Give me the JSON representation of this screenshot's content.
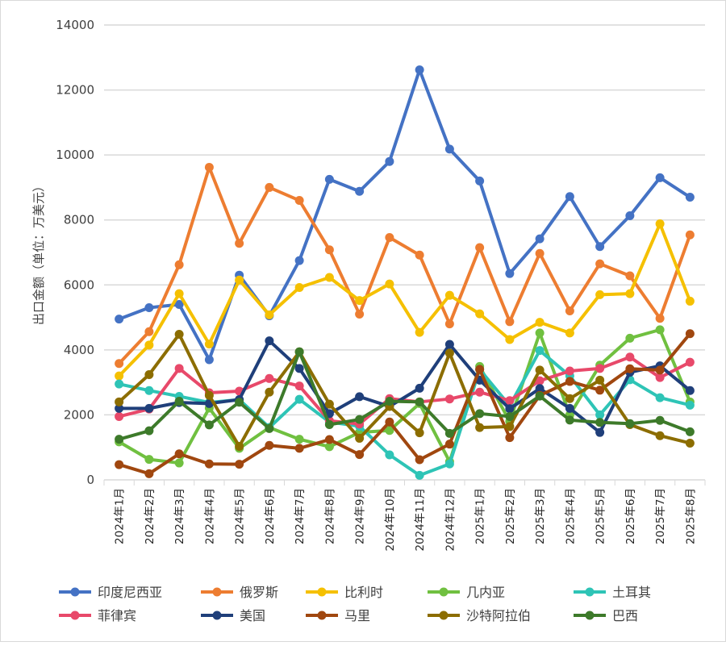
{
  "chart_data": {
    "type": "line",
    "title": "",
    "xlabel": "",
    "ylabel": "出口金额（单位：万美元）",
    "ylim": [
      0,
      14000
    ],
    "yticks": [
      0,
      2000,
      4000,
      6000,
      8000,
      10000,
      12000,
      14000
    ],
    "grid": true,
    "legend_position": "bottom",
    "categories": [
      "2024年1月",
      "2024年2月",
      "2024年3月",
      "2024年4月",
      "2024年5月",
      "2024年6月",
      "2024年7月",
      "2024年8月",
      "2024年9月",
      "2024年10月",
      "2024年11月",
      "2024年12月",
      "2025年1月",
      "2025年2月",
      "2025年3月",
      "2025年4月",
      "2025年5月",
      "2025年6月",
      "2025年7月",
      "2025年8月"
    ],
    "series": [
      {
        "name": "印度尼西亚",
        "color": "#4472c4",
        "values": [
          4950,
          5300,
          5400,
          3700,
          6300,
          5050,
          6750,
          9250,
          8880,
          9800,
          12620,
          10180,
          9200,
          6350,
          7420,
          8720,
          7180,
          8130,
          9300,
          8700
        ]
      },
      {
        "name": "俄罗斯",
        "color": "#ed7d31",
        "values": [
          3580,
          4560,
          6620,
          9620,
          7280,
          9000,
          8600,
          7080,
          5100,
          7460,
          6920,
          4800,
          7150,
          4870,
          6970,
          5200,
          6650,
          6280,
          4970,
          7540
        ]
      },
      {
        "name": "比利时",
        "color": "#f5c000",
        "values": [
          3200,
          4150,
          5730,
          4180,
          6150,
          5080,
          5920,
          6230,
          5520,
          6030,
          4540,
          5680,
          5110,
          4320,
          4850,
          4520,
          5700,
          5730,
          7880,
          5500
        ]
      },
      {
        "name": "几内亚",
        "color": "#70c040",
        "values": [
          1170,
          630,
          520,
          2210,
          970,
          1610,
          1250,
          1020,
          1460,
          1520,
          2350,
          560,
          3490,
          1800,
          4520,
          2000,
          3530,
          4360,
          4620,
          2400
        ]
      },
      {
        "name": "土耳其",
        "color": "#2ec4b6",
        "values": [
          2950,
          2750,
          2570,
          2380,
          2470,
          1610,
          2480,
          1780,
          1650,
          770,
          140,
          490,
          3400,
          2280,
          3980,
          3200,
          2000,
          3080,
          2530,
          2300
        ]
      },
      {
        "name": "菲律宾",
        "color": "#e8496a",
        "values": [
          1950,
          2180,
          3430,
          2680,
          2730,
          3120,
          2890,
          1820,
          1720,
          2500,
          2400,
          2490,
          2700,
          2440,
          3050,
          3350,
          3430,
          3780,
          3150,
          3620
        ]
      },
      {
        "name": "美国",
        "color": "#1f3f7a",
        "values": [
          2200,
          2200,
          2380,
          2350,
          2470,
          4280,
          3430,
          2040,
          2560,
          2260,
          2820,
          4170,
          3070,
          2190,
          2810,
          2200,
          1460,
          3310,
          3510,
          2750
        ]
      },
      {
        "name": "马里",
        "color": "#a0470f",
        "values": [
          470,
          190,
          800,
          490,
          480,
          1060,
          970,
          1240,
          780,
          1780,
          620,
          1100,
          3400,
          1300,
          2600,
          3030,
          2760,
          3420,
          3380,
          4500
        ]
      },
      {
        "name": "沙特阿拉伯",
        "color": "#8c6d00",
        "values": [
          2400,
          3240,
          4480,
          2600,
          1030,
          2700,
          3940,
          2330,
          1280,
          2260,
          1450,
          3900,
          1610,
          1640,
          3380,
          2500,
          3070,
          1700,
          1360,
          1130
        ]
      },
      {
        "name": "巴西",
        "color": "#3d7a2a",
        "values": [
          1250,
          1510,
          2420,
          1690,
          2390,
          1580,
          3940,
          1700,
          1860,
          2420,
          2400,
          1430,
          2040,
          1950,
          2580,
          1840,
          1770,
          1730,
          1830,
          1480
        ]
      }
    ]
  }
}
